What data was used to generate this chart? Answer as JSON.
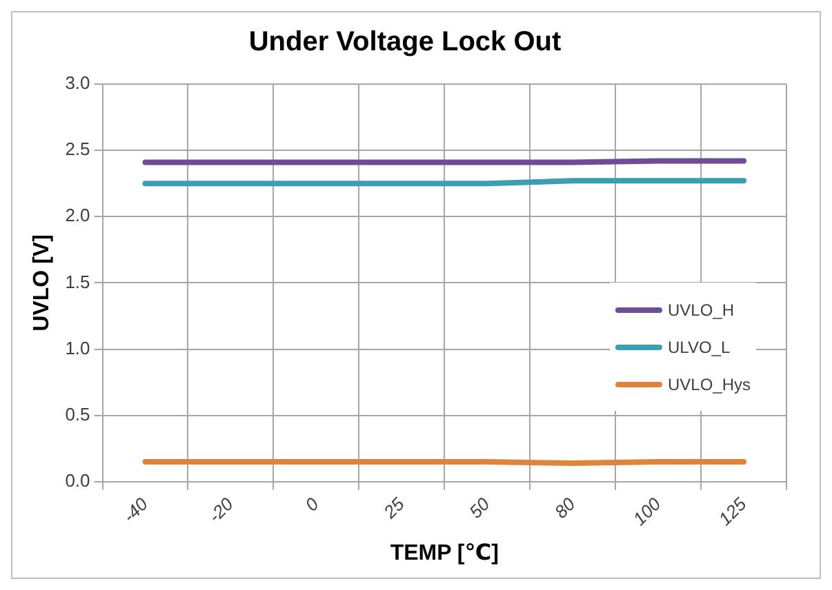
{
  "chart_data": {
    "type": "line",
    "title": "Under Voltage Lock Out",
    "xlabel": "TEMP [℃]",
    "ylabel": "UVLO [V]",
    "categories": [
      "-40",
      "-20",
      "0",
      "25",
      "50",
      "80",
      "100",
      "125"
    ],
    "series": [
      {
        "name": "UVLO_H",
        "color": "#6f4d96",
        "values": [
          2.41,
          2.41,
          2.41,
          2.41,
          2.41,
          2.41,
          2.42,
          2.42
        ]
      },
      {
        "name": "ULVO_L",
        "color": "#3d9db3",
        "values": [
          2.25,
          2.25,
          2.25,
          2.25,
          2.25,
          2.27,
          2.27,
          2.27
        ]
      },
      {
        "name": "UVLO_Hys",
        "color": "#e0843a",
        "values": [
          0.15,
          0.15,
          0.15,
          0.15,
          0.15,
          0.14,
          0.15,
          0.15
        ]
      }
    ],
    "ylim": [
      0,
      3
    ],
    "yticks": [
      {
        "value": 0,
        "label": "0.0"
      },
      0.5,
      {
        "value": 1,
        "label": "1.0"
      },
      1.5,
      {
        "value": 2,
        "label": "2.0"
      },
      2.5,
      {
        "value": 3,
        "label": "3.0"
      }
    ],
    "grid": true,
    "legend": "right",
    "marker": "none",
    "line_style": "solid"
  }
}
